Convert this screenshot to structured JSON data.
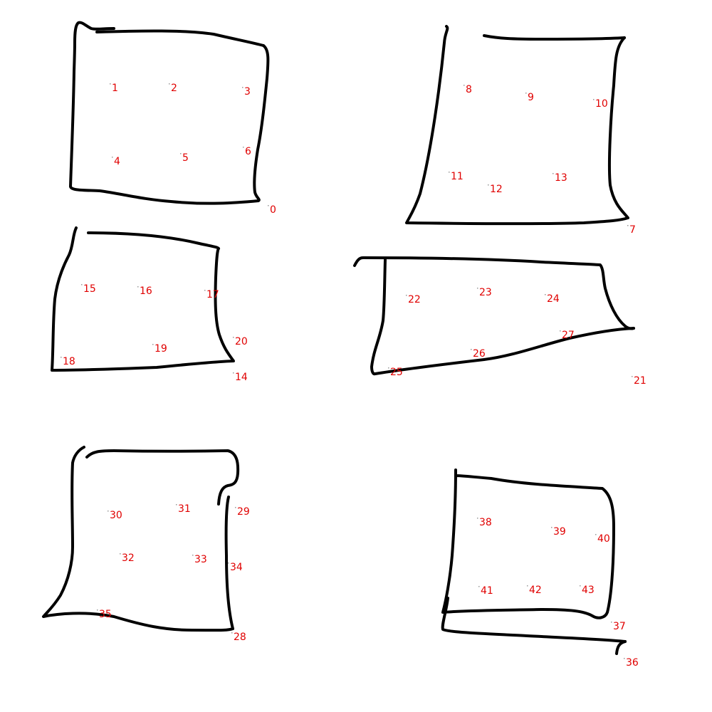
{
  "label_color": "#e00000",
  "stroke_color": "#000000",
  "shapes": [
    {
      "id": 1,
      "label_ids": [
        "0",
        "1",
        "2",
        "3",
        "4",
        "5",
        "6"
      ]
    },
    {
      "id": 2,
      "label_ids": [
        "7",
        "8",
        "9",
        "10",
        "11",
        "12",
        "13"
      ]
    },
    {
      "id": 3,
      "label_ids": [
        "14",
        "15",
        "16",
        "17",
        "18",
        "19",
        "20"
      ]
    },
    {
      "id": 4,
      "label_ids": [
        "21",
        "22",
        "23",
        "24",
        "25",
        "26",
        "27"
      ]
    },
    {
      "id": 5,
      "label_ids": [
        "28",
        "29",
        "30",
        "31",
        "32",
        "33",
        "34",
        "35"
      ]
    },
    {
      "id": 6,
      "label_ids": [
        "36",
        "37",
        "38",
        "39",
        "40",
        "41",
        "42",
        "43"
      ]
    }
  ],
  "labels": {
    "0": "0",
    "1": "1",
    "2": "2",
    "3": "3",
    "4": "4",
    "5": "5",
    "6": "6",
    "7": "7",
    "8": "8",
    "9": "9",
    "10": "10",
    "11": "11",
    "12": "12",
    "13": "13",
    "14": "14",
    "15": "15",
    "16": "16",
    "17": "17",
    "18": "18",
    "19": "19",
    "20": "20",
    "21": "21",
    "22": "22",
    "23": "23",
    "24": "24",
    "25": "25",
    "26": "26",
    "27": "27",
    "28": "28",
    "29": "29",
    "30": "30",
    "31": "31",
    "32": "32",
    "33": "33",
    "34": "34",
    "35": "35",
    "36": "36",
    "37": "37",
    "38": "38",
    "39": "39",
    "40": "40",
    "41": "41",
    "42": "42",
    "43": "43"
  }
}
